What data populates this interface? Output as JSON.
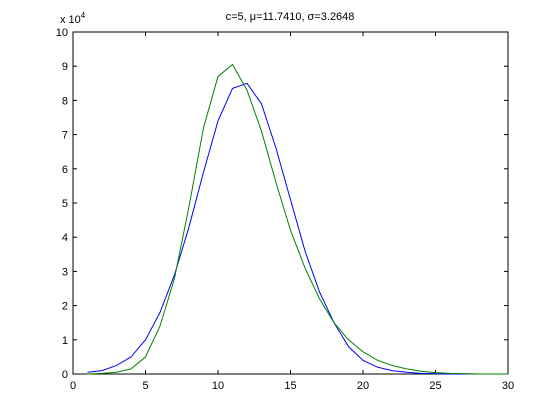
{
  "chart_data": {
    "type": "line",
    "title": "c=5, μ=11.7410, σ=3.2648",
    "y_multiplier": "x 10",
    "y_multiplier_exponent": "4",
    "x": [
      1,
      2,
      3,
      4,
      5,
      6,
      7,
      8,
      9,
      10,
      11,
      12,
      13,
      14,
      15,
      16,
      17,
      18,
      19,
      20,
      21,
      22,
      23,
      24,
      25,
      26,
      27,
      28,
      29,
      30
    ],
    "series": [
      {
        "color": "#0000ff",
        "values": [
          0.05,
          0.1,
          0.25,
          0.5,
          1.0,
          1.8,
          2.9,
          4.3,
          5.9,
          7.4,
          8.35,
          8.5,
          7.9,
          6.6,
          5.1,
          3.6,
          2.4,
          1.5,
          0.8,
          0.4,
          0.2,
          0.1,
          0.05,
          0.02,
          0.01,
          0,
          0,
          0,
          0,
          0
        ]
      },
      {
        "color": "#008000",
        "values": [
          0,
          0.02,
          0.05,
          0.15,
          0.5,
          1.4,
          2.8,
          4.9,
          7.2,
          8.7,
          9.05,
          8.3,
          7.1,
          5.6,
          4.2,
          3.1,
          2.2,
          1.5,
          1.0,
          0.65,
          0.4,
          0.25,
          0.15,
          0.08,
          0.04,
          0.02,
          0.01,
          0,
          0,
          0
        ]
      }
    ],
    "xlim": [
      0,
      30
    ],
    "xticks": [
      0,
      5,
      10,
      15,
      20,
      25,
      30
    ],
    "ylim": [
      0,
      10
    ],
    "yticks": [
      0,
      1,
      2,
      3,
      4,
      5,
      6,
      7,
      8,
      9,
      10
    ]
  }
}
